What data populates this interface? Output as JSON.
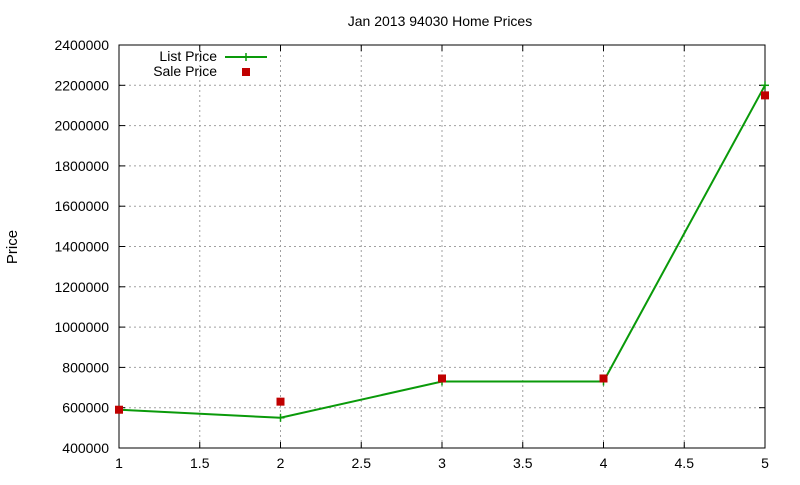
{
  "chart_data": {
    "type": "line",
    "title": "Jan 2013 94030 Home Prices",
    "xlabel": "",
    "ylabel": "Price",
    "xlim": [
      1,
      5
    ],
    "ylim": [
      400000,
      2400000
    ],
    "x_ticks": [
      "1",
      "1.5",
      "2",
      "2.5",
      "3",
      "3.5",
      "4",
      "4.5",
      "5"
    ],
    "y_ticks": [
      "400000",
      "600000",
      "800000",
      "1000000",
      "1200000",
      "1400000",
      "1600000",
      "1800000",
      "2000000",
      "2200000",
      "2400000"
    ],
    "grid": true,
    "legend_position": "top-left",
    "series": [
      {
        "name": "List Price",
        "style": "line-with-plus-markers",
        "color": "#0a9a0a",
        "x": [
          1,
          2,
          3,
          4,
          5
        ],
        "values": [
          590000,
          550000,
          730000,
          730000,
          2200000
        ]
      },
      {
        "name": "Sale Price",
        "style": "square-markers",
        "color": "#c00000",
        "x": [
          1,
          2,
          3,
          4,
          5
        ],
        "values": [
          590000,
          630000,
          745000,
          745000,
          2150000
        ]
      }
    ]
  }
}
